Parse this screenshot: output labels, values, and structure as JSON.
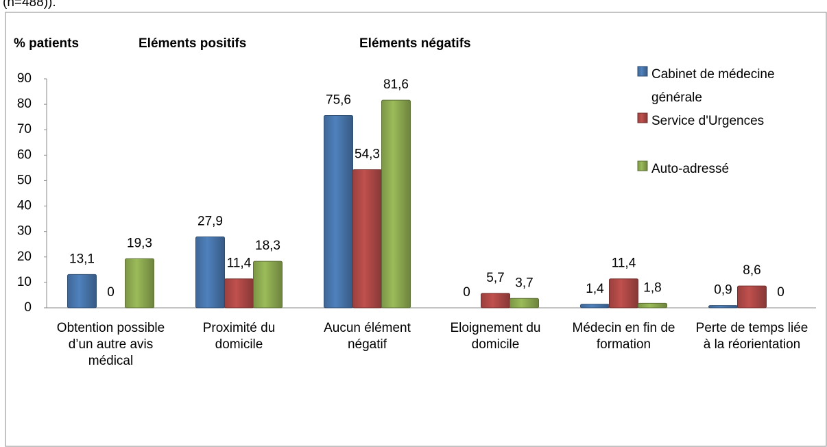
{
  "chart_data": {
    "type": "bar",
    "caption": "(n=488)).",
    "y_label": "% patients",
    "annotations": [
      "Eléments positifs",
      "Eléments négatifs"
    ],
    "categories": [
      "Obtention possible d’un autre avis médical",
      "Proximité du domicile",
      "Aucun élément négatif",
      "Eloignement du domicile",
      "Médecin en fin de formation",
      "Perte de temps liée à la réorientation"
    ],
    "series": [
      {
        "name": "Cabinet de médecine générale",
        "color": "#4f81bd",
        "values": [
          13.1,
          27.9,
          75.6,
          0,
          1.4,
          0.9
        ],
        "value_labels": [
          "13,1",
          "27,9",
          "75,6",
          "0",
          "1,4",
          "0,9"
        ]
      },
      {
        "name": "Service d'Urgences",
        "color": "#c0504d",
        "values": [
          0,
          11.4,
          54.3,
          5.7,
          11.4,
          8.6
        ],
        "value_labels": [
          "0",
          "11,4",
          "54,3",
          "5,7",
          "11,4",
          "8,6"
        ]
      },
      {
        "name": "Auto-adressé",
        "color": "#9bbb59",
        "values": [
          19.3,
          18.3,
          81.6,
          3.7,
          1.8,
          0
        ],
        "value_labels": [
          "19,3",
          "18,3",
          "81,6",
          "3,7",
          "1,8",
          "0"
        ]
      }
    ],
    "ylim": [
      0,
      90
    ],
    "yticks": [
      0,
      10,
      20,
      30,
      40,
      50,
      60,
      70,
      80,
      90
    ],
    "grid": false,
    "legend": "right"
  }
}
